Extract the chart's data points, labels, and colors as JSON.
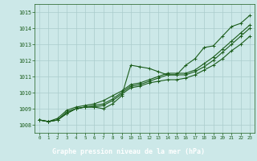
{
  "x": [
    0,
    1,
    2,
    3,
    4,
    5,
    6,
    7,
    8,
    9,
    10,
    11,
    12,
    13,
    14,
    15,
    16,
    17,
    18,
    19,
    20,
    21,
    22,
    23
  ],
  "line1": [
    1008.3,
    1008.2,
    1008.3,
    1008.7,
    1009.0,
    1009.1,
    1009.1,
    1009.0,
    1009.3,
    1009.8,
    1011.7,
    1011.6,
    1011.5,
    1011.3,
    1011.1,
    1011.1,
    1011.7,
    1012.1,
    1012.8,
    1012.9,
    1013.5,
    1014.1,
    1014.3,
    1014.8
  ],
  "line2": [
    1008.3,
    1008.2,
    1008.3,
    1008.7,
    1009.0,
    1009.1,
    1009.1,
    1009.2,
    1009.5,
    1009.9,
    1010.3,
    1010.4,
    1010.6,
    1010.7,
    1010.8,
    1010.8,
    1010.9,
    1011.1,
    1011.4,
    1011.7,
    1012.1,
    1012.6,
    1013.0,
    1013.5
  ],
  "line3": [
    1008.3,
    1008.2,
    1008.3,
    1008.8,
    1009.0,
    1009.1,
    1009.2,
    1009.3,
    1009.6,
    1010.0,
    1010.4,
    1010.5,
    1010.7,
    1010.9,
    1011.1,
    1011.1,
    1011.1,
    1011.3,
    1011.6,
    1012.0,
    1012.5,
    1013.0,
    1013.5,
    1014.0
  ],
  "line4": [
    1008.3,
    1008.2,
    1008.4,
    1008.9,
    1009.1,
    1009.2,
    1009.3,
    1009.5,
    1009.8,
    1010.1,
    1010.5,
    1010.6,
    1010.8,
    1011.0,
    1011.2,
    1011.2,
    1011.2,
    1011.4,
    1011.8,
    1012.2,
    1012.7,
    1013.2,
    1013.7,
    1014.2
  ],
  "bg_color": "#cce8e8",
  "grid_color": "#aacccc",
  "line_color": "#1a5c1a",
  "tick_color": "#1a5c1a",
  "label_color": "#ffffff",
  "label_bg": "#2d6e2d",
  "xlabel": "Graphe pression niveau de la mer (hPa)",
  "ylim": [
    1007.5,
    1015.5
  ],
  "xlim": [
    -0.5,
    23.5
  ],
  "yticks": [
    1008,
    1009,
    1010,
    1011,
    1012,
    1013,
    1014,
    1015
  ],
  "xticks": [
    0,
    1,
    2,
    3,
    4,
    5,
    6,
    7,
    8,
    9,
    10,
    11,
    12,
    13,
    14,
    15,
    16,
    17,
    18,
    19,
    20,
    21,
    22,
    23
  ]
}
